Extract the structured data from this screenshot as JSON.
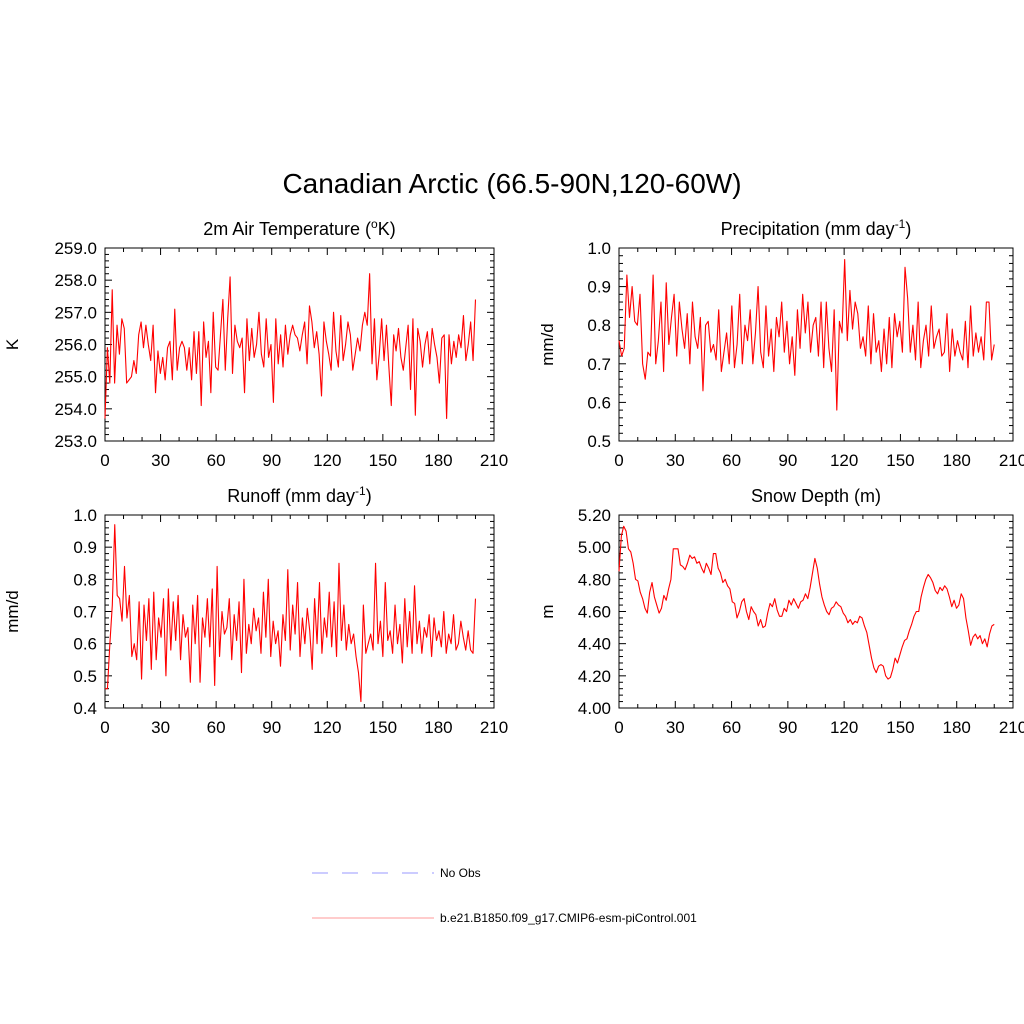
{
  "title": "Canadian Arctic (66.5-90N,120-60W)",
  "legend": [
    {
      "label": "No Obs",
      "color": "#9999ff",
      "dash": true
    },
    {
      "label": "b.e21.B1850.f09_g17.CMIP6-esm-piControl.001",
      "color": "#ff0000",
      "dash": false
    }
  ],
  "line_color": "#ff0000",
  "chart_data": [
    {
      "type": "line",
      "title": "2m Air Temperature (oK)",
      "title_base": "2m Air Temperature (",
      "title_sup": "o",
      "title_after": "K)",
      "ylabel": "K",
      "xlim": [
        0,
        210
      ],
      "ylim": [
        253,
        259
      ],
      "xticks": [
        0,
        30,
        60,
        90,
        120,
        150,
        180,
        210
      ],
      "xticklabels": [
        "0",
        "30",
        "60",
        "90",
        "120",
        "150",
        "180",
        "210"
      ],
      "yticks": [
        253,
        254,
        255,
        256,
        257,
        258,
        259
      ],
      "yticklabels": [
        "253.0",
        "254.0",
        "255.0",
        "256.0",
        "257.0",
        "258.0",
        "259.0"
      ],
      "series": [
        {
          "name": "b.e21.B1850.f09_g17.CMIP6-esm-piControl.001",
          "values": [
            253.7,
            255.9,
            254.8,
            257.7,
            254.8,
            256.6,
            255.7,
            256.8,
            256.5,
            254.8,
            254.9,
            255.0,
            255.5,
            255.1,
            256.3,
            256.7,
            255.9,
            256.6,
            256.0,
            255.5,
            256.6,
            254.5,
            255.8,
            255.1,
            255.6,
            254.9,
            255.9,
            256.1,
            254.9,
            257.1,
            255.2,
            255.9,
            256.1,
            255.9,
            255.2,
            255.9,
            254.9,
            256.4,
            255.1,
            256.4,
            254.1,
            256.7,
            255.6,
            256.1,
            254.5,
            257.0,
            255.3,
            255.2,
            256.3,
            257.4,
            255.2,
            256.8,
            258.1,
            255.1,
            256.6,
            256.1,
            255.9,
            256.2,
            254.5,
            256.8,
            255.5,
            256.5,
            255.6,
            256.0,
            257.0,
            255.7,
            255.3,
            256.8,
            255.6,
            256.0,
            254.2,
            256.8,
            255.4,
            256.3,
            255.3,
            256.6,
            255.7,
            256.3,
            256.6,
            256.3,
            256.2,
            255.8,
            256.3,
            256.7,
            255.4,
            257.2,
            256.7,
            255.9,
            256.4,
            255.7,
            254.4,
            256.7,
            256.1,
            255.7,
            255.2,
            257.0,
            255.8,
            255.3,
            256.9,
            255.5,
            256.0,
            256.7,
            256.3,
            255.2,
            255.7,
            256.2,
            255.8,
            256.6,
            257.0,
            256.6,
            258.2,
            255.4,
            256.8,
            254.9,
            255.7,
            256.8,
            255.5,
            256.6,
            255.3,
            254.1,
            256.3,
            255.8,
            256.5,
            255.6,
            255.2,
            255.9,
            256.6,
            254.6,
            256.8,
            253.8,
            256.5,
            256.1,
            255.3,
            256.0,
            256.4,
            255.4,
            256.5,
            256.0,
            255.6,
            254.8,
            256.2,
            256.3,
            253.7,
            256.3,
            255.4,
            256.1,
            255.6,
            256.3,
            255.9,
            256.9,
            255.5,
            256.0,
            256.7,
            255.5,
            257.4
          ]
        }
      ]
    },
    {
      "type": "line",
      "title": "Precipitation (mm day-1)",
      "title_base": "Precipitation (mm day",
      "title_sup": "-1",
      "title_after": ")",
      "ylabel": "mm/d",
      "xlim": [
        0,
        210
      ],
      "ylim": [
        0.5,
        1.0
      ],
      "xticks": [
        0,
        30,
        60,
        90,
        120,
        150,
        180,
        210
      ],
      "xticklabels": [
        "0",
        "30",
        "60",
        "90",
        "120",
        "150",
        "180",
        "210"
      ],
      "yticks": [
        0.5,
        0.6,
        0.7,
        0.8,
        0.9,
        1.0
      ],
      "yticklabels": [
        "0.5",
        "0.6",
        "0.7",
        "0.8",
        "0.9",
        "1.0"
      ],
      "series": [
        {
          "name": "b.e21.B1850.f09_g17.CMIP6-esm-piControl.001",
          "values": [
            0.76,
            0.72,
            0.74,
            0.93,
            0.82,
            0.9,
            0.81,
            0.8,
            0.88,
            0.7,
            0.66,
            0.73,
            0.72,
            0.93,
            0.7,
            0.76,
            0.86,
            0.68,
            0.91,
            0.75,
            0.82,
            0.88,
            0.72,
            0.86,
            0.79,
            0.74,
            0.83,
            0.7,
            0.86,
            0.77,
            0.74,
            0.82,
            0.63,
            0.8,
            0.81,
            0.73,
            0.75,
            0.71,
            0.84,
            0.68,
            0.73,
            0.78,
            0.7,
            0.85,
            0.69,
            0.75,
            0.88,
            0.7,
            0.8,
            0.76,
            0.84,
            0.7,
            0.78,
            0.9,
            0.73,
            0.69,
            0.85,
            0.72,
            0.79,
            0.68,
            0.82,
            0.77,
            0.86,
            0.73,
            0.81,
            0.7,
            0.77,
            0.67,
            0.84,
            0.74,
            0.88,
            0.78,
            0.86,
            0.73,
            0.8,
            0.82,
            0.72,
            0.86,
            0.69,
            0.86,
            0.74,
            0.68,
            0.84,
            0.58,
            0.81,
            0.78,
            0.97,
            0.76,
            0.89,
            0.79,
            0.86,
            0.83,
            0.74,
            0.77,
            0.72,
            0.85,
            0.7,
            0.83,
            0.73,
            0.76,
            0.68,
            0.79,
            0.7,
            0.82,
            0.69,
            0.83,
            0.77,
            0.81,
            0.73,
            0.95,
            0.87,
            0.73,
            0.8,
            0.71,
            0.86,
            0.69,
            0.76,
            0.8,
            0.72,
            0.85,
            0.74,
            0.77,
            0.79,
            0.72,
            0.73,
            0.83,
            0.68,
            0.79,
            0.72,
            0.76,
            0.73,
            0.71,
            0.81,
            0.69,
            0.85,
            0.72,
            0.78,
            0.73,
            0.77,
            0.71,
            0.86,
            0.86,
            0.71,
            0.75
          ]
        }
      ]
    },
    {
      "type": "line",
      "title": "Runoff (mm day-1)",
      "title_base": "Runoff (mm day",
      "title_sup": "-1",
      "title_after": ")",
      "ylabel": "mm/d",
      "xlim": [
        0,
        210
      ],
      "ylim": [
        0.4,
        1.0
      ],
      "xticks": [
        0,
        30,
        60,
        90,
        120,
        150,
        180,
        210
      ],
      "xticklabels": [
        "0",
        "30",
        "60",
        "90",
        "120",
        "150",
        "180",
        "210"
      ],
      "yticks": [
        0.4,
        0.5,
        0.6,
        0.7,
        0.8,
        0.9,
        1.0
      ],
      "yticklabels": [
        "0.4",
        "0.5",
        "0.6",
        "0.7",
        "0.8",
        "0.9",
        "1.0"
      ],
      "series": [
        {
          "name": "b.e21.B1850.f09_g17.CMIP6-esm-piControl.001",
          "values": [
            0.46,
            0.46,
            0.6,
            0.72,
            0.97,
            0.75,
            0.74,
            0.67,
            0.84,
            0.68,
            0.75,
            0.56,
            0.6,
            0.55,
            0.73,
            0.49,
            0.72,
            0.61,
            0.74,
            0.52,
            0.76,
            0.55,
            0.68,
            0.62,
            0.74,
            0.5,
            0.77,
            0.58,
            0.73,
            0.61,
            0.75,
            0.55,
            0.69,
            0.62,
            0.65,
            0.48,
            0.72,
            0.6,
            0.75,
            0.48,
            0.68,
            0.62,
            0.74,
            0.59,
            0.77,
            0.47,
            0.84,
            0.56,
            0.7,
            0.63,
            0.65,
            0.74,
            0.55,
            0.69,
            0.61,
            0.73,
            0.51,
            0.8,
            0.57,
            0.66,
            0.6,
            0.71,
            0.64,
            0.68,
            0.57,
            0.76,
            0.62,
            0.8,
            0.56,
            0.67,
            0.6,
            0.64,
            0.53,
            0.69,
            0.61,
            0.83,
            0.58,
            0.72,
            0.63,
            0.79,
            0.56,
            0.68,
            0.6,
            0.71,
            0.64,
            0.52,
            0.74,
            0.6,
            0.79,
            0.57,
            0.68,
            0.62,
            0.76,
            0.59,
            0.73,
            0.56,
            0.85,
            0.61,
            0.72,
            0.58,
            0.66,
            0.6,
            0.63,
            0.56,
            0.51,
            0.42,
            0.72,
            0.57,
            0.6,
            0.63,
            0.58,
            0.85,
            0.6,
            0.67,
            0.56,
            0.79,
            0.61,
            0.64,
            0.57,
            0.72,
            0.6,
            0.66,
            0.54,
            0.74,
            0.59,
            0.7,
            0.57,
            0.78,
            0.6,
            0.67,
            0.57,
            0.65,
            0.62,
            0.69,
            0.56,
            0.68,
            0.61,
            0.64,
            0.59,
            0.7,
            0.57,
            0.63,
            0.6,
            0.69,
            0.58,
            0.6,
            0.67,
            0.62,
            0.58,
            0.64,
            0.58,
            0.57,
            0.74
          ]
        }
      ]
    },
    {
      "type": "line",
      "title": "Snow Depth (m)",
      "title_base": "Snow Depth (m)",
      "title_sup": "",
      "title_after": "",
      "ylabel": "m",
      "xlim": [
        0,
        210
      ],
      "ylim": [
        4.0,
        5.2
      ],
      "xticks": [
        0,
        30,
        60,
        90,
        120,
        150,
        180,
        210
      ],
      "xticklabels": [
        "0",
        "30",
        "60",
        "90",
        "120",
        "150",
        "180",
        "210"
      ],
      "yticks": [
        4.0,
        4.2,
        4.4,
        4.6,
        4.8,
        5.0,
        5.2
      ],
      "yticklabels": [
        "4.00",
        "4.20",
        "4.40",
        "4.60",
        "4.80",
        "5.00",
        "5.20"
      ],
      "series": [
        {
          "name": "b.e21.B1850.f09_g17.CMIP6-esm-piControl.001",
          "values": [
            4.85,
            5.07,
            5.13,
            5.1,
            4.99,
            4.97,
            4.9,
            4.8,
            4.79,
            4.72,
            4.68,
            4.62,
            4.59,
            4.72,
            4.78,
            4.69,
            4.64,
            4.59,
            4.62,
            4.7,
            4.67,
            4.74,
            4.8,
            4.99,
            4.99,
            4.99,
            4.89,
            4.88,
            4.86,
            4.9,
            4.95,
            4.93,
            4.94,
            4.9,
            4.91,
            4.87,
            4.84,
            4.9,
            4.87,
            4.83,
            4.96,
            4.96,
            4.87,
            4.84,
            4.78,
            4.8,
            4.76,
            4.74,
            4.66,
            4.65,
            4.56,
            4.6,
            4.66,
            4.68,
            4.6,
            4.55,
            4.63,
            4.6,
            4.58,
            4.51,
            4.55,
            4.5,
            4.51,
            4.59,
            4.65,
            4.63,
            4.68,
            4.61,
            4.57,
            4.57,
            4.62,
            4.6,
            4.67,
            4.64,
            4.68,
            4.65,
            4.62,
            4.66,
            4.67,
            4.71,
            4.68,
            4.75,
            4.84,
            4.93,
            4.87,
            4.77,
            4.69,
            4.64,
            4.6,
            4.58,
            4.62,
            4.63,
            4.66,
            4.64,
            4.63,
            4.59,
            4.57,
            4.53,
            4.55,
            4.52,
            4.54,
            4.53,
            4.57,
            4.56,
            4.51,
            4.47,
            4.39,
            4.31,
            4.25,
            4.22,
            4.26,
            4.27,
            4.26,
            4.2,
            4.18,
            4.19,
            4.24,
            4.31,
            4.28,
            4.33,
            4.38,
            4.42,
            4.43,
            4.48,
            4.52,
            4.57,
            4.6,
            4.6,
            4.69,
            4.75,
            4.8,
            4.83,
            4.81,
            4.78,
            4.73,
            4.71,
            4.75,
            4.73,
            4.76,
            4.74,
            4.69,
            4.63,
            4.67,
            4.62,
            4.64,
            4.71,
            4.68,
            4.56,
            4.48,
            4.39,
            4.44,
            4.46,
            4.43,
            4.45,
            4.4,
            4.43,
            4.38,
            4.46,
            4.51,
            4.52
          ]
        }
      ]
    }
  ]
}
